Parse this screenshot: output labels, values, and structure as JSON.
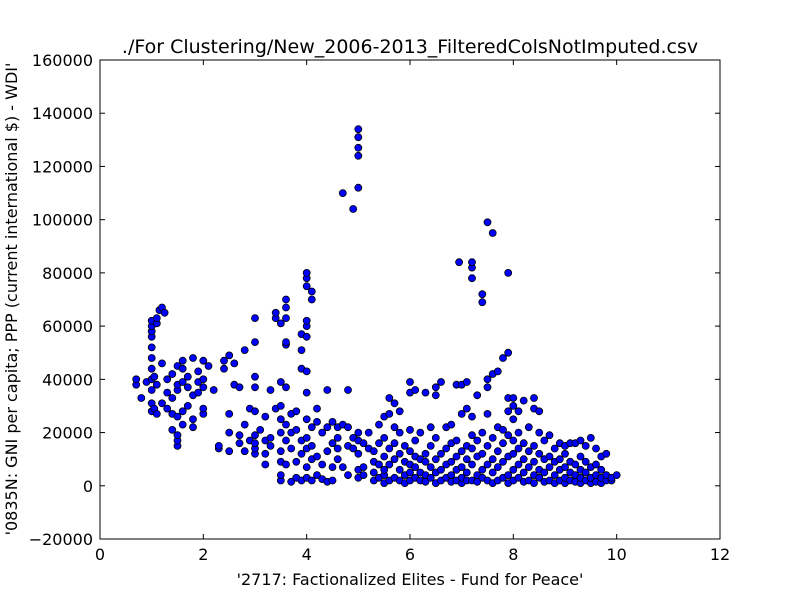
{
  "chart_data": {
    "type": "scatter",
    "title": "./For Clustering/New_2006-2013_FilteredColsNotImputed.csv",
    "xlabel": "'2717: Factionalized Elites - Fund for Peace'",
    "ylabel": "'0835N: GNI per capita; PPP  (current international $) - WDI'",
    "xlim": [
      0,
      12
    ],
    "ylim": [
      -20000,
      160000
    ],
    "xticks": [
      0,
      2,
      4,
      6,
      8,
      10,
      12
    ],
    "yticks": [
      -20000,
      0,
      20000,
      40000,
      60000,
      80000,
      100000,
      120000,
      140000,
      160000
    ],
    "xtick_labels": [
      "0",
      "2",
      "4",
      "6",
      "8",
      "10",
      "12"
    ],
    "ytick_labels": [
      "−20000",
      "0",
      "20000",
      "40000",
      "60000",
      "80000",
      "100000",
      "120000",
      "140000",
      "160000"
    ],
    "grid": false,
    "marker_color": "#0000ff",
    "marker_edge": "#000000",
    "points": [
      [
        0.7,
        38000
      ],
      [
        0.7,
        40000
      ],
      [
        0.8,
        33000
      ],
      [
        0.9,
        39000
      ],
      [
        1.0,
        28000
      ],
      [
        1.0,
        31000
      ],
      [
        1.0,
        36000
      ],
      [
        1.0,
        40000
      ],
      [
        1.0,
        44000
      ],
      [
        1.0,
        48000
      ],
      [
        1.0,
        52000
      ],
      [
        1.0,
        56000
      ],
      [
        1.0,
        58000
      ],
      [
        1.0,
        60000
      ],
      [
        1.0,
        62000
      ],
      [
        1.05,
        29000
      ],
      [
        1.05,
        41000
      ],
      [
        1.1,
        27000
      ],
      [
        1.1,
        38000
      ],
      [
        1.1,
        61000
      ],
      [
        1.1,
        63000
      ],
      [
        1.15,
        66000
      ],
      [
        1.2,
        67000
      ],
      [
        1.2,
        31000
      ],
      [
        1.2,
        46000
      ],
      [
        1.25,
        65000
      ],
      [
        1.3,
        29000
      ],
      [
        1.3,
        35000
      ],
      [
        1.3,
        40000
      ],
      [
        1.4,
        21000
      ],
      [
        1.4,
        27000
      ],
      [
        1.4,
        33000
      ],
      [
        1.4,
        42000
      ],
      [
        1.5,
        15000
      ],
      [
        1.5,
        17000
      ],
      [
        1.5,
        19000
      ],
      [
        1.5,
        26000
      ],
      [
        1.5,
        36000
      ],
      [
        1.5,
        38000
      ],
      [
        1.5,
        45000
      ],
      [
        1.6,
        23000
      ],
      [
        1.6,
        28000
      ],
      [
        1.6,
        39000
      ],
      [
        1.6,
        44000
      ],
      [
        1.6,
        47000
      ],
      [
        1.7,
        30000
      ],
      [
        1.7,
        37000
      ],
      [
        1.7,
        41000
      ],
      [
        1.8,
        22000
      ],
      [
        1.8,
        25000
      ],
      [
        1.8,
        34000
      ],
      [
        1.8,
        48000
      ],
      [
        1.9,
        35000
      ],
      [
        1.9,
        39000
      ],
      [
        1.9,
        43000
      ],
      [
        2.0,
        27000
      ],
      [
        2.0,
        29000
      ],
      [
        2.0,
        37000
      ],
      [
        2.0,
        40000
      ],
      [
        2.0,
        47000
      ],
      [
        2.1,
        45000
      ],
      [
        2.2,
        36000
      ],
      [
        2.3,
        14000
      ],
      [
        2.3,
        15000
      ],
      [
        2.4,
        44000
      ],
      [
        2.4,
        47000
      ],
      [
        2.5,
        13000
      ],
      [
        2.5,
        20000
      ],
      [
        2.5,
        27000
      ],
      [
        2.5,
        49000
      ],
      [
        2.6,
        38000
      ],
      [
        2.6,
        46000
      ],
      [
        2.7,
        16000
      ],
      [
        2.7,
        19000
      ],
      [
        2.7,
        37000
      ],
      [
        2.8,
        13000
      ],
      [
        2.8,
        23000
      ],
      [
        2.8,
        51000
      ],
      [
        2.9,
        17000
      ],
      [
        2.9,
        29000
      ],
      [
        3.0,
        12000
      ],
      [
        3.0,
        14000
      ],
      [
        3.0,
        16000
      ],
      [
        3.0,
        19000
      ],
      [
        3.0,
        28000
      ],
      [
        3.0,
        37000
      ],
      [
        3.0,
        41000
      ],
      [
        3.0,
        54000
      ],
      [
        3.0,
        63000
      ],
      [
        3.1,
        21000
      ],
      [
        3.2,
        8000
      ],
      [
        3.2,
        12000
      ],
      [
        3.2,
        17000
      ],
      [
        3.2,
        26000
      ],
      [
        3.3,
        15000
      ],
      [
        3.3,
        18000
      ],
      [
        3.3,
        36000
      ],
      [
        3.4,
        29000
      ],
      [
        3.4,
        63000
      ],
      [
        3.4,
        65000
      ],
      [
        3.5,
        2000
      ],
      [
        3.5,
        4000
      ],
      [
        3.5,
        9000
      ],
      [
        3.5,
        13000
      ],
      [
        3.5,
        20000
      ],
      [
        3.5,
        25000
      ],
      [
        3.5,
        30000
      ],
      [
        3.5,
        39000
      ],
      [
        3.5,
        61000
      ],
      [
        3.6,
        8000
      ],
      [
        3.6,
        17000
      ],
      [
        3.6,
        23000
      ],
      [
        3.6,
        37000
      ],
      [
        3.6,
        53000
      ],
      [
        3.6,
        54000
      ],
      [
        3.6,
        63000
      ],
      [
        3.6,
        67000
      ],
      [
        3.6,
        70000
      ],
      [
        3.7,
        1500
      ],
      [
        3.7,
        14000
      ],
      [
        3.7,
        20000
      ],
      [
        3.7,
        27000
      ],
      [
        3.8,
        3000
      ],
      [
        3.8,
        9000
      ],
      [
        3.8,
        21000
      ],
      [
        3.8,
        28000
      ],
      [
        3.9,
        2000
      ],
      [
        3.9,
        12000
      ],
      [
        3.9,
        17000
      ],
      [
        3.9,
        44000
      ],
      [
        3.9,
        51000
      ],
      [
        3.9,
        57000
      ],
      [
        4.0,
        3000
      ],
      [
        4.0,
        7000
      ],
      [
        4.0,
        14000
      ],
      [
        4.0,
        18000
      ],
      [
        4.0,
        25000
      ],
      [
        4.0,
        35000
      ],
      [
        4.0,
        43000
      ],
      [
        4.0,
        56000
      ],
      [
        4.0,
        60000
      ],
      [
        4.0,
        62000
      ],
      [
        4.0,
        75000
      ],
      [
        4.0,
        78000
      ],
      [
        4.0,
        80000
      ],
      [
        4.1,
        2000
      ],
      [
        4.1,
        10000
      ],
      [
        4.1,
        15000
      ],
      [
        4.1,
        22000
      ],
      [
        4.1,
        70000
      ],
      [
        4.1,
        73000
      ],
      [
        4.2,
        4000
      ],
      [
        4.2,
        11000
      ],
      [
        4.2,
        24000
      ],
      [
        4.2,
        29000
      ],
      [
        4.3,
        2500
      ],
      [
        4.3,
        8000
      ],
      [
        4.3,
        20000
      ],
      [
        4.4,
        1500
      ],
      [
        4.4,
        13000
      ],
      [
        4.4,
        22000
      ],
      [
        4.4,
        36000
      ],
      [
        4.5,
        2000
      ],
      [
        4.5,
        7000
      ],
      [
        4.5,
        16000
      ],
      [
        4.5,
        24000
      ],
      [
        4.6,
        10000
      ],
      [
        4.6,
        14000
      ],
      [
        4.6,
        18000
      ],
      [
        4.6,
        22000
      ],
      [
        4.7,
        7000
      ],
      [
        4.7,
        23000
      ],
      [
        4.7,
        110000
      ],
      [
        4.8,
        4000
      ],
      [
        4.8,
        15000
      ],
      [
        4.8,
        22000
      ],
      [
        4.8,
        36000
      ],
      [
        4.9,
        104000
      ],
      [
        4.9,
        14000
      ],
      [
        4.9,
        18000
      ],
      [
        5.0,
        3000
      ],
      [
        5.0,
        6000
      ],
      [
        5.0,
        12000
      ],
      [
        5.0,
        17000
      ],
      [
        5.0,
        20000
      ],
      [
        5.0,
        112000
      ],
      [
        5.0,
        124000
      ],
      [
        5.0,
        127000
      ],
      [
        5.0,
        131000
      ],
      [
        5.0,
        134000
      ],
      [
        5.1,
        4000
      ],
      [
        5.1,
        7000
      ],
      [
        5.1,
        16000
      ],
      [
        5.2,
        14000
      ],
      [
        5.2,
        20000
      ],
      [
        5.3,
        2000
      ],
      [
        5.3,
        5000
      ],
      [
        5.3,
        9000
      ],
      [
        5.3,
        13000
      ],
      [
        5.4,
        3000
      ],
      [
        5.4,
        8000
      ],
      [
        5.4,
        16000
      ],
      [
        5.4,
        23000
      ],
      [
        5.5,
        1000
      ],
      [
        5.5,
        4000
      ],
      [
        5.5,
        6000
      ],
      [
        5.5,
        11000
      ],
      [
        5.5,
        18000
      ],
      [
        5.5,
        26000
      ],
      [
        5.6,
        2000
      ],
      [
        5.6,
        8000
      ],
      [
        5.6,
        14000
      ],
      [
        5.6,
        27000
      ],
      [
        5.6,
        33000
      ],
      [
        5.7,
        3000
      ],
      [
        5.7,
        10000
      ],
      [
        5.7,
        16000
      ],
      [
        5.7,
        22000
      ],
      [
        5.7,
        31000
      ],
      [
        5.8,
        2000
      ],
      [
        5.8,
        6000
      ],
      [
        5.8,
        12000
      ],
      [
        5.8,
        20000
      ],
      [
        5.8,
        28000
      ],
      [
        5.9,
        1000
      ],
      [
        5.9,
        4000
      ],
      [
        5.9,
        9000
      ],
      [
        5.9,
        15000
      ],
      [
        6.0,
        2000
      ],
      [
        6.0,
        5000
      ],
      [
        6.0,
        8000
      ],
      [
        6.0,
        13000
      ],
      [
        6.0,
        21000
      ],
      [
        6.0,
        35000
      ],
      [
        6.0,
        39000
      ],
      [
        6.1,
        3000
      ],
      [
        6.1,
        7000
      ],
      [
        6.1,
        11000
      ],
      [
        6.1,
        17000
      ],
      [
        6.1,
        36000
      ],
      [
        6.2,
        2000
      ],
      [
        6.2,
        5000
      ],
      [
        6.2,
        10000
      ],
      [
        6.2,
        20000
      ],
      [
        6.3,
        1500
      ],
      [
        6.3,
        4000
      ],
      [
        6.3,
        9000
      ],
      [
        6.3,
        12000
      ],
      [
        6.3,
        35000
      ],
      [
        6.4,
        3000
      ],
      [
        6.4,
        7000
      ],
      [
        6.4,
        15000
      ],
      [
        6.4,
        22000
      ],
      [
        6.5,
        1000
      ],
      [
        6.5,
        5000
      ],
      [
        6.5,
        10000
      ],
      [
        6.5,
        18000
      ],
      [
        6.5,
        34000
      ],
      [
        6.5,
        37000
      ],
      [
        6.6,
        2000
      ],
      [
        6.6,
        6000
      ],
      [
        6.6,
        12000
      ],
      [
        6.6,
        39000
      ],
      [
        6.7,
        3000
      ],
      [
        6.7,
        8000
      ],
      [
        6.7,
        14000
      ],
      [
        6.7,
        22000
      ],
      [
        6.8,
        1500
      ],
      [
        6.8,
        4000
      ],
      [
        6.8,
        9000
      ],
      [
        6.8,
        16000
      ],
      [
        6.8,
        23000
      ],
      [
        6.9,
        2000
      ],
      [
        6.9,
        6000
      ],
      [
        6.9,
        11000
      ],
      [
        6.9,
        17000
      ],
      [
        6.9,
        38000
      ],
      [
        6.95,
        84000
      ],
      [
        7.0,
        1000
      ],
      [
        7.0,
        3000
      ],
      [
        7.0,
        7000
      ],
      [
        7.0,
        13000
      ],
      [
        7.0,
        27000
      ],
      [
        7.0,
        38000
      ],
      [
        7.1,
        2000
      ],
      [
        7.1,
        5000
      ],
      [
        7.1,
        10000
      ],
      [
        7.1,
        15000
      ],
      [
        7.1,
        29000
      ],
      [
        7.1,
        39000
      ],
      [
        7.2,
        78000
      ],
      [
        7.2,
        82000
      ],
      [
        7.2,
        84000
      ],
      [
        7.2,
        2000
      ],
      [
        7.2,
        8000
      ],
      [
        7.2,
        14000
      ],
      [
        7.2,
        19000
      ],
      [
        7.2,
        26000
      ],
      [
        7.3,
        1500
      ],
      [
        7.3,
        4000
      ],
      [
        7.3,
        11000
      ],
      [
        7.3,
        17000
      ],
      [
        7.3,
        34000
      ],
      [
        7.4,
        3000
      ],
      [
        7.4,
        6000
      ],
      [
        7.4,
        12000
      ],
      [
        7.4,
        20000
      ],
      [
        7.4,
        69000
      ],
      [
        7.4,
        72000
      ],
      [
        7.5,
        2000
      ],
      [
        7.5,
        8000
      ],
      [
        7.5,
        15000
      ],
      [
        7.5,
        27000
      ],
      [
        7.5,
        37000
      ],
      [
        7.5,
        40000
      ],
      [
        7.5,
        99000
      ],
      [
        7.6,
        95000
      ],
      [
        7.6,
        1000
      ],
      [
        7.6,
        5000
      ],
      [
        7.6,
        10000
      ],
      [
        7.6,
        18000
      ],
      [
        7.6,
        42000
      ],
      [
        7.7,
        2000
      ],
      [
        7.7,
        7000
      ],
      [
        7.7,
        13000
      ],
      [
        7.7,
        22000
      ],
      [
        7.7,
        43000
      ],
      [
        7.8,
        3000
      ],
      [
        7.8,
        9000
      ],
      [
        7.8,
        16000
      ],
      [
        7.8,
        21000
      ],
      [
        7.8,
        48000
      ],
      [
        7.9,
        1000
      ],
      [
        7.9,
        4000
      ],
      [
        7.9,
        11000
      ],
      [
        7.9,
        19000
      ],
      [
        7.9,
        28000
      ],
      [
        7.9,
        33000
      ],
      [
        7.9,
        50000
      ],
      [
        7.9,
        80000
      ],
      [
        8.0,
        2000
      ],
      [
        8.0,
        6000
      ],
      [
        8.0,
        12000
      ],
      [
        8.0,
        17000
      ],
      [
        8.0,
        25000
      ],
      [
        8.0,
        30000
      ],
      [
        8.0,
        33000
      ],
      [
        8.1,
        3000
      ],
      [
        8.1,
        8000
      ],
      [
        8.1,
        14000
      ],
      [
        8.1,
        20000
      ],
      [
        8.1,
        28000
      ],
      [
        8.2,
        1500
      ],
      [
        8.2,
        5000
      ],
      [
        8.2,
        10000
      ],
      [
        8.2,
        16000
      ],
      [
        8.2,
        32000
      ],
      [
        8.3,
        2000
      ],
      [
        8.3,
        7000
      ],
      [
        8.3,
        13000
      ],
      [
        8.3,
        22000
      ],
      [
        8.4,
        1000
      ],
      [
        8.4,
        4000
      ],
      [
        8.4,
        9000
      ],
      [
        8.4,
        15000
      ],
      [
        8.4,
        29000
      ],
      [
        8.4,
        33000
      ],
      [
        8.5,
        3000
      ],
      [
        8.5,
        6000
      ],
      [
        8.5,
        12000
      ],
      [
        8.5,
        20000
      ],
      [
        8.5,
        28000
      ],
      [
        8.6,
        1500
      ],
      [
        8.6,
        5000
      ],
      [
        8.6,
        10000
      ],
      [
        8.6,
        17000
      ],
      [
        8.7,
        2000
      ],
      [
        8.7,
        7000
      ],
      [
        8.7,
        11000
      ],
      [
        8.7,
        19000
      ],
      [
        8.8,
        1000
      ],
      [
        8.8,
        4000
      ],
      [
        8.8,
        9000
      ],
      [
        8.8,
        14000
      ],
      [
        8.9,
        2000
      ],
      [
        8.9,
        6000
      ],
      [
        8.9,
        10000
      ],
      [
        8.9,
        16000
      ],
      [
        9.0,
        1000
      ],
      [
        9.0,
        3000
      ],
      [
        9.0,
        7000
      ],
      [
        9.0,
        12000
      ],
      [
        9.0,
        15000
      ],
      [
        9.1,
        2000
      ],
      [
        9.1,
        5000
      ],
      [
        9.1,
        9000
      ],
      [
        9.1,
        16000
      ],
      [
        9.2,
        1500
      ],
      [
        9.2,
        4000
      ],
      [
        9.2,
        8000
      ],
      [
        9.2,
        16000
      ],
      [
        9.3,
        1000
      ],
      [
        9.3,
        3000
      ],
      [
        9.3,
        6000
      ],
      [
        9.3,
        11000
      ],
      [
        9.3,
        17000
      ],
      [
        9.4,
        2000
      ],
      [
        9.4,
        5000
      ],
      [
        9.4,
        9000
      ],
      [
        9.4,
        15000
      ],
      [
        9.5,
        1000
      ],
      [
        9.5,
        3000
      ],
      [
        9.5,
        7000
      ],
      [
        9.5,
        18000
      ],
      [
        9.6,
        1500
      ],
      [
        9.6,
        4000
      ],
      [
        9.6,
        8000
      ],
      [
        9.6,
        14000
      ],
      [
        9.7,
        1000
      ],
      [
        9.7,
        3000
      ],
      [
        9.7,
        6000
      ],
      [
        9.7,
        11000
      ],
      [
        9.8,
        2000
      ],
      [
        9.8,
        4000
      ],
      [
        9.8,
        12000
      ],
      [
        9.9,
        2000
      ],
      [
        9.9,
        3000
      ],
      [
        10.0,
        4000
      ]
    ]
  }
}
